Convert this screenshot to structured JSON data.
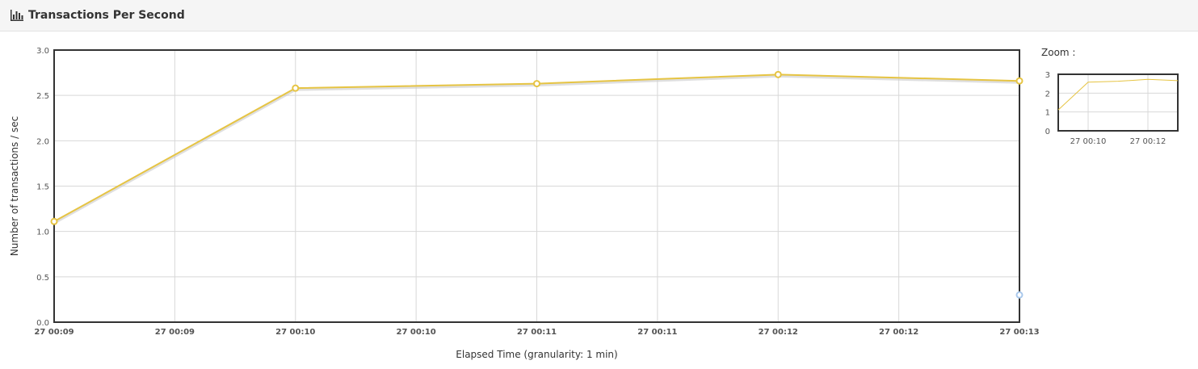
{
  "panel": {
    "title": "Transactions Per Second",
    "icon": "bar-chart-icon"
  },
  "zoom": {
    "label": "Zoom :"
  },
  "colors": {
    "series_line": "#e6c443",
    "series_shadow": "#c9c9c9",
    "series_marker_fill": "#ffffff",
    "secondary_marker": "#a9c8ec",
    "grid": "#d8d8d8",
    "frame": "#333333"
  },
  "chart_data": {
    "type": "line",
    "ylabel": "Number of transactions / sec",
    "xlabel": "Elapsed Time (granularity: 1 min)",
    "ylim": [
      0,
      3
    ],
    "y_ticks": [
      "0.0",
      "0.5",
      "1.0",
      "1.5",
      "2.0",
      "2.5",
      "3.0"
    ],
    "x_range_min": [
      0,
      4
    ],
    "x_tick_labels": [
      "27 00:09",
      "27 00:09",
      "27 00:10",
      "27 00:10",
      "27 00:11",
      "27 00:11",
      "27 00:12",
      "27 00:12",
      "27 00:13"
    ],
    "grid": true,
    "series": [
      {
        "x": [
          "27 00:09",
          "27 00:10",
          "27 00:11",
          "27 00:12",
          "27 00:13"
        ],
        "values": [
          1.11,
          2.58,
          2.63,
          2.73,
          2.66
        ]
      }
    ],
    "extra_points": [
      {
        "x": "27 00:13",
        "value": 0.3
      }
    ],
    "overview": {
      "ylim": [
        0,
        3
      ],
      "y_ticks": [
        "0",
        "1",
        "2",
        "3"
      ],
      "x_tick_labels": [
        "27 00:10",
        "27 00:12"
      ]
    }
  }
}
